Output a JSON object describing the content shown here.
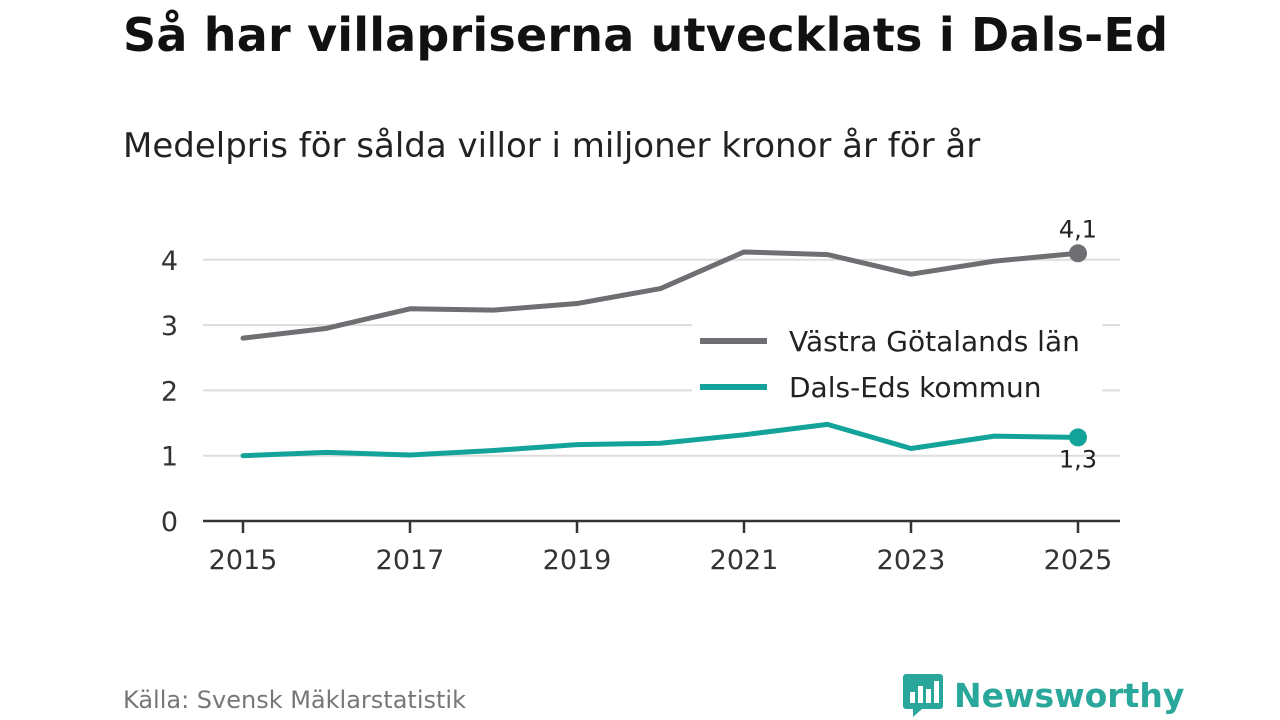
{
  "header": {
    "title": "Så har villapriserna utvecklats i Dals-Ed",
    "subtitle": "Medelpris för sålda villor i miljoner kronor år för år"
  },
  "footer": {
    "source": "Källa: Svensk Mäklarstatistik",
    "brand": "Newsworthy",
    "brand_color": "#2aa79b"
  },
  "chart_data": {
    "type": "line",
    "title": "Så har villapriserna utvecklats i Dals-Ed",
    "subtitle": "Medelpris för sålda villor i miljoner kronor år för år",
    "xlabel": "",
    "ylabel": "",
    "x": [
      2015,
      2016,
      2017,
      2018,
      2019,
      2020,
      2021,
      2022,
      2023,
      2024,
      2025
    ],
    "xticks": [
      "2015",
      "2017",
      "2019",
      "2021",
      "2023",
      "2025"
    ],
    "yticks": [
      "0",
      "1",
      "2",
      "3",
      "4"
    ],
    "ylim": [
      0,
      4.5
    ],
    "xlim": [
      2015,
      2025
    ],
    "grid": true,
    "legend_position": "right",
    "series": [
      {
        "name": "Västra Götalands län",
        "color": "#6e6e73",
        "values": [
          2.8,
          2.95,
          3.25,
          3.23,
          3.33,
          3.56,
          4.12,
          4.08,
          3.78,
          3.98,
          4.1
        ],
        "end_label": "4,1"
      },
      {
        "name": "Dals-Eds kommun",
        "color": "#13a39a",
        "values": [
          1.0,
          1.05,
          1.01,
          1.08,
          1.17,
          1.19,
          1.32,
          1.48,
          1.11,
          1.3,
          1.28
        ],
        "end_label": "1,3"
      }
    ]
  }
}
